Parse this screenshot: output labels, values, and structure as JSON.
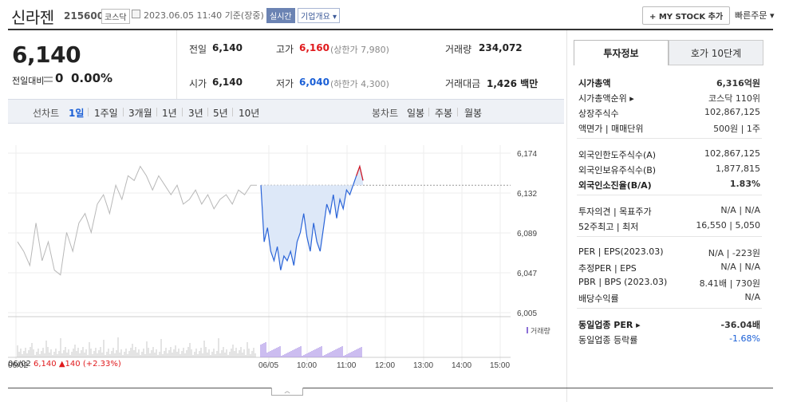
{
  "header": {
    "title": "신라젠",
    "code": "215600",
    "exchange": "코스닥",
    "datetime": "2023.06.05 11:40",
    "basis": "기준(장중)",
    "realtime": "실시간",
    "company_btn": "기업개요 ▾",
    "mystock_btn": "+ MY STOCK 추가",
    "quick_order": "빠른주문 ▾"
  },
  "quote": {
    "price": "6,140",
    "change_label": "전일대비",
    "change_value": "0",
    "change_pct": "0.00%"
  },
  "stats": {
    "prev_label": "전일",
    "prev": "6,140",
    "high_label": "고가",
    "high": "6,160",
    "upper_limit": "(상한가 7,980)",
    "volume_label": "거래량",
    "volume": "234,072",
    "open_label": "시가",
    "open": "6,140",
    "low_label": "저가",
    "low": "6,040",
    "lower_limit": "(하한가 4,300)",
    "amount_label": "거래대금",
    "amount": "1,426",
    "amount_unit": "백만"
  },
  "period": {
    "line_label": "선차트",
    "line_items": [
      "1일",
      "1주일",
      "3개월",
      "1년",
      "3년",
      "5년",
      "10년"
    ],
    "candle_label": "봉차트",
    "candle_items": [
      "일봉",
      "주봉",
      "월봉"
    ]
  },
  "chart_data": {
    "type": "line",
    "y_ticks": [
      "6,174",
      "6,132",
      "6,089",
      "6,047",
      "6,005"
    ],
    "ylim": [
      6005,
      6174
    ],
    "x_ticks": [
      "06/02",
      "06/05",
      "10:00",
      "11:00",
      "12:00",
      "13:00",
      "14:00",
      "15:00"
    ],
    "volume_legend": "거래량",
    "footer_date": "06/02",
    "footer_price": "6,140",
    "footer_change": "▲140",
    "footer_pct": "(+2.33%)",
    "ref_line": 6140,
    "series_prev_day": [
      6080,
      6070,
      6055,
      6100,
      6060,
      6080,
      6050,
      6045,
      6090,
      6070,
      6100,
      6110,
      6090,
      6120,
      6130,
      6110,
      6140,
      6125,
      6150,
      6145,
      6160,
      6150,
      6135,
      6150,
      6140,
      6130,
      6140,
      6120,
      6125,
      6135,
      6120,
      6130,
      6115,
      6125,
      6130,
      6120,
      6135,
      6130,
      6140,
      6140
    ],
    "series_today": [
      6140,
      6080,
      6095,
      6070,
      6060,
      6075,
      6050,
      6065,
      6060,
      6070,
      6055,
      6080,
      6090,
      6110,
      6085,
      6070,
      6100,
      6080,
      6070,
      6095,
      6120,
      6110,
      6130,
      6105,
      6125,
      6115,
      6135,
      6130,
      6140,
      6150,
      6160,
      6145
    ]
  },
  "right": {
    "tab_info": "투자정보",
    "tab_hoga": "호가 10단계",
    "rows1": [
      [
        "시가총액",
        "6,316억원"
      ],
      [
        "시가총액순위 ▸",
        "코스닥 110위"
      ],
      [
        "상장주식수",
        "102,867,125"
      ],
      [
        "액면가 | 매매단위",
        "500원 | 1주"
      ]
    ],
    "rows2": [
      [
        "외국인한도주식수(A)",
        "102,867,125"
      ],
      [
        "외국인보유주식수(B)",
        "1,877,815"
      ],
      [
        "외국인소진율(B/A)",
        "1.83%"
      ]
    ],
    "rows3": [
      [
        "투자의견 | 목표주가",
        "N/A | N/A"
      ],
      [
        "52주최고 | 최저",
        "16,550 | 5,050"
      ]
    ],
    "rows4": [
      [
        "PER | EPS(2023.03)",
        "N/A | -223원"
      ],
      [
        "추정PER | EPS",
        "N/A | N/A"
      ],
      [
        "PBR | BPS (2023.03)",
        "8.41배 | 730원"
      ],
      [
        "배당수익률",
        "N/A"
      ]
    ],
    "rows5": [
      [
        "동일업종 PER ▸",
        "-36.04배"
      ],
      [
        "동일업종 등락률",
        "-1.68%"
      ]
    ]
  }
}
